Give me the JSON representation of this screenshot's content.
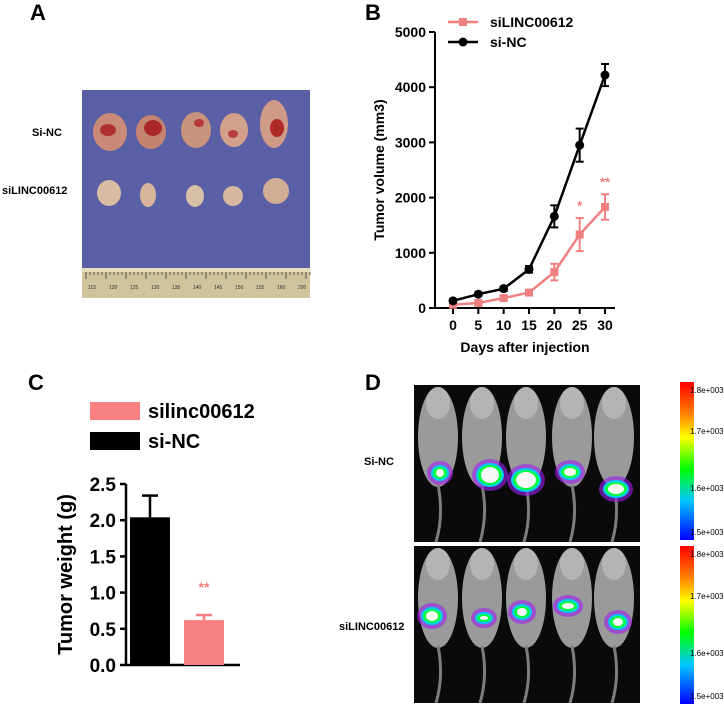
{
  "panels": {
    "a": "A",
    "b": "B",
    "c": "C",
    "d": "D"
  },
  "panel_a": {
    "row_top_label": "Si-NC",
    "row_bottom_label": "siLINC00612",
    "ruler_ticks": [
      "115",
      "120",
      "125",
      "130",
      "135",
      "140",
      "145",
      "150",
      "155",
      "160",
      "200"
    ]
  },
  "panel_d": {
    "row_top_label": "Si-NC",
    "row_bottom_label": "siLINC00612",
    "scale_top": {
      "max": "1.8e+003",
      "mid1": "1.7e+003",
      "mid2": "1.6e+003",
      "min": "1.5e+003"
    },
    "scale_bottom": {
      "max": "1.8e+003",
      "mid1": "1.7e+003",
      "mid2": "1.6e+003",
      "min": "1.5e+003"
    }
  },
  "chart_data": [
    {
      "id": "B",
      "type": "line",
      "ylabel": "Tumor volume (mm3)",
      "xlabel": "Days after injection",
      "x": [
        0,
        5,
        10,
        15,
        20,
        25,
        30
      ],
      "ylim": [
        0,
        5000
      ],
      "yticks": [
        0,
        1000,
        2000,
        3000,
        4000,
        5000
      ],
      "legend_position": "top-left",
      "series": [
        {
          "name": "siLINC00612",
          "color": "#f08080",
          "values": [
            60,
            90,
            180,
            280,
            650,
            1330,
            1830
          ],
          "errors": [
            20,
            30,
            40,
            40,
            150,
            300,
            230
          ],
          "sig": [
            "",
            "",
            "",
            "",
            "",
            "*",
            "**"
          ]
        },
        {
          "name": "si-NC",
          "color": "#000000",
          "values": [
            130,
            250,
            350,
            700,
            1660,
            2950,
            4220
          ],
          "errors": [
            30,
            30,
            40,
            60,
            200,
            300,
            200
          ]
        }
      ]
    },
    {
      "id": "C",
      "type": "bar",
      "ylabel": "Tumor weight (g)",
      "ylim": [
        0,
        2.5
      ],
      "yticks": [
        "0.0",
        "0.5",
        "1.0",
        "1.5",
        "2.0",
        "2.5"
      ],
      "legend_position": "top",
      "series": [
        {
          "name": "silinc00612",
          "color": "#f88080",
          "value": 0.62,
          "error": 0.07,
          "sig": "**"
        },
        {
          "name": "si-NC",
          "color": "#000000",
          "value": 2.04,
          "error": 0.3
        }
      ],
      "bar_order": [
        "si-NC",
        "silinc00612"
      ]
    }
  ]
}
